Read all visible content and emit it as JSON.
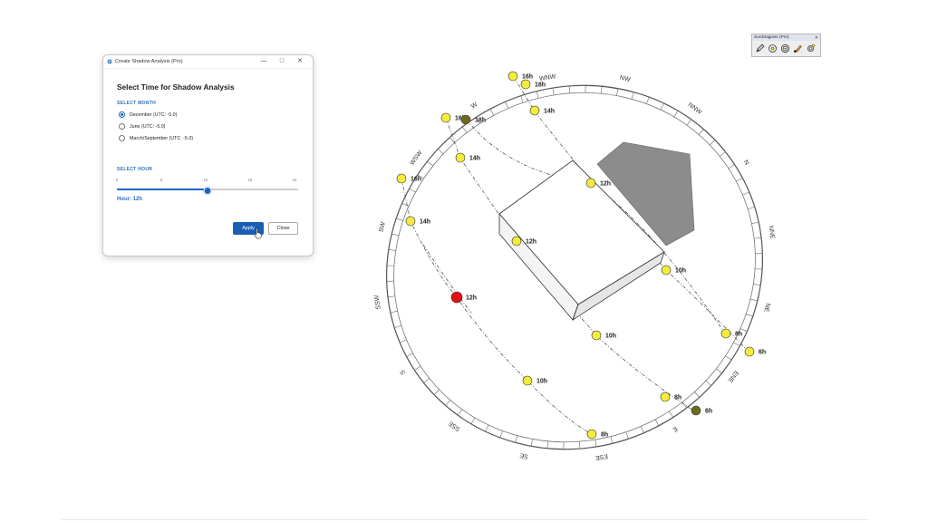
{
  "viewport": {
    "compass": [
      "N",
      "NNE",
      "NE",
      "ENE",
      "E",
      "ESE",
      "SE",
      "SSE",
      "S",
      "SSW",
      "SW",
      "WSW",
      "W",
      "WNW",
      "NW",
      "NNW"
    ],
    "sun_markers": [
      {
        "label": "16h",
        "state": "normal"
      },
      {
        "label": "18h",
        "state": "normal"
      },
      {
        "label": "14h",
        "state": "normal"
      },
      {
        "label": "16h",
        "state": "normal"
      },
      {
        "label": "18h",
        "state": "sunset"
      },
      {
        "label": "14h",
        "state": "normal"
      },
      {
        "label": "12h",
        "state": "normal"
      },
      {
        "label": "16h",
        "state": "normal"
      },
      {
        "label": "14h",
        "state": "normal"
      },
      {
        "label": "12h",
        "state": "normal"
      },
      {
        "label": "10h",
        "state": "normal"
      },
      {
        "label": "12h",
        "state": "selected"
      },
      {
        "label": "10h",
        "state": "normal"
      },
      {
        "label": "8h",
        "state": "normal"
      },
      {
        "label": "6h",
        "state": "normal"
      },
      {
        "label": "10h",
        "state": "normal"
      },
      {
        "label": "8h",
        "state": "normal"
      },
      {
        "label": "6h",
        "state": "sunrise"
      },
      {
        "label": "8h",
        "state": "normal"
      }
    ],
    "colors": {
      "sun": "#f4ec3c",
      "selected_sun": "#e01010",
      "dark_sun": "#6b6b1e",
      "shadow": "#8c8c8c"
    }
  },
  "dialog": {
    "title": "Create Shadow Analysis (Pro)",
    "heading": "Select Time for Shadow Analysis",
    "month_label": "SELECT MONTH",
    "months": [
      {
        "label": "December (UTC: -5.0)",
        "checked": true
      },
      {
        "label": "June (UTC: -5.0)",
        "checked": false
      },
      {
        "label": "March/September (UTC: -5.0)",
        "checked": false
      }
    ],
    "hour_label": "SELECT HOUR",
    "hour_ticks": [
      "0",
      "6",
      "12",
      "18",
      "24"
    ],
    "hour_range": [
      0,
      24
    ],
    "hour_value": 12,
    "hour_readout": "Hour: 12h",
    "apply_label": "Apply",
    "close_label": "Close",
    "accent_color": "#1a5fb4"
  },
  "toolbar": {
    "title": "SunDiagram (Pro)",
    "close": "✕",
    "icons": [
      "pencil-icon",
      "sun-path-icon",
      "target-icon",
      "brush-icon",
      "settings-icon"
    ]
  }
}
